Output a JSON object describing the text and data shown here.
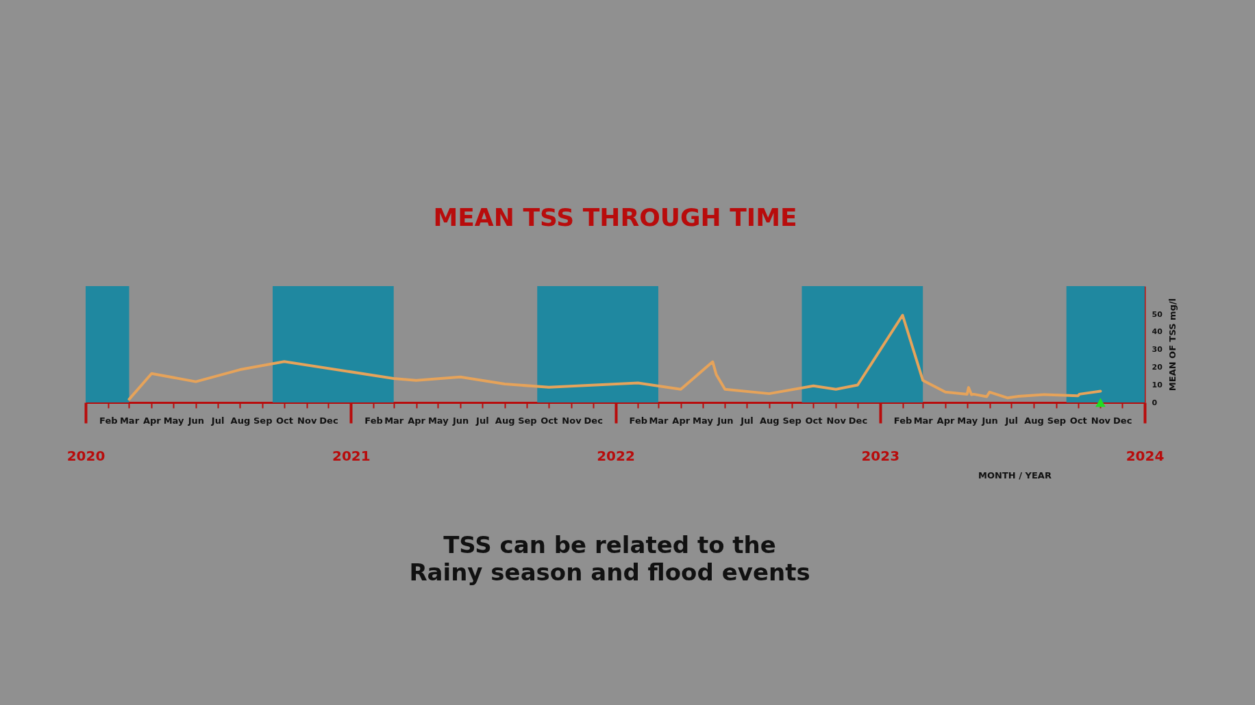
{
  "chart_data": {
    "type": "line",
    "title": "MEAN TSS THROUGH TIME",
    "xlabel": "MONTH / YEAR",
    "ylabel": "MEAN OF TSS mg/l",
    "series": [
      {
        "color": "#e6a35a",
        "x": [
          "2020-03-01",
          "2020-04-01",
          "2020-06-01",
          "2020-08-01",
          "2020-10-01",
          "2021-03-01",
          "2021-04-01",
          "2021-06-01",
          "2021-08-01",
          "2021-10-01",
          "2022-02-01",
          "2022-04-01",
          "2022-05-15",
          "2022-05-20",
          "2022-06-01",
          "2022-08-01",
          "2022-10-01",
          "2022-11-01",
          "2022-12-01",
          "2023-02-01",
          "2023-03-01",
          "2023-04-01",
          "2023-05-01",
          "2023-05-03",
          "2023-05-07",
          "2023-05-10",
          "2023-05-28",
          "2023-06-01",
          "2023-06-26",
          "2023-07-11",
          "2023-08-15",
          "2023-10-01",
          "2023-10-03",
          "2023-11-01"
        ],
        "values": [
          1.8,
          16.4,
          11.8,
          18.6,
          23.2,
          13.6,
          12.5,
          14.5,
          10.5,
          8.6,
          11.1,
          7.5,
          23.1,
          15.8,
          7.5,
          5,
          9.4,
          7.5,
          9.9,
          49.5,
          12.5,
          5.9,
          4.7,
          8.5,
          4.5,
          4.7,
          3.3,
          5.9,
          2.6,
          3.5,
          4.5,
          3.8,
          4.7,
          6.4
        ]
      },
      {
        "type": "scatter",
        "color": "#22dd22",
        "marker": "triangle",
        "x": [
          "2023-11-01"
        ],
        "values": [
          0
        ]
      }
    ],
    "xlim": [
      "2020-01-01",
      "2024-01-01"
    ],
    "ylim": [
      0,
      66
    ],
    "yticks": [
      0,
      10,
      20,
      30,
      40,
      50
    ],
    "x2lim": [
      "2020-01-01",
      "2024-01-01"
    ],
    "x2ticks": [
      "2020",
      "2021",
      "2022",
      "2023",
      "2024"
    ],
    "xticks": [
      {
        "value": "2020-02",
        "label": "Feb"
      },
      {
        "value": "2020-03",
        "label": "Mar"
      },
      {
        "value": "2020-04",
        "label": "Apr"
      },
      {
        "value": "2020-05",
        "label": "May"
      },
      {
        "value": "2020-06",
        "label": "Jun"
      },
      {
        "value": "2020-07",
        "label": "Jul"
      },
      {
        "value": "2020-08",
        "label": "Aug"
      },
      {
        "value": "2020-09",
        "label": "Sep"
      },
      {
        "value": "2020-10",
        "label": "Oct"
      },
      {
        "value": "2020-11",
        "label": "Nov"
      },
      {
        "value": "2020-12",
        "label": "Dec"
      },
      {
        "value": "2021-02",
        "label": "Feb"
      },
      {
        "value": "2021-03",
        "label": "Mar"
      },
      {
        "value": "2021-04",
        "label": "Apr"
      },
      {
        "value": "2021-05",
        "label": "May"
      },
      {
        "value": "2021-06",
        "label": "Jun"
      },
      {
        "value": "2021-07",
        "label": "Jul"
      },
      {
        "value": "2021-08",
        "label": "Aug"
      },
      {
        "value": "2021-09",
        "label": "Sep"
      },
      {
        "value": "2021-10",
        "label": "Oct"
      },
      {
        "value": "2021-11",
        "label": "Nov"
      },
      {
        "value": "2021-12",
        "label": "Dec"
      },
      {
        "value": "2022-02",
        "label": "Feb"
      },
      {
        "value": "2022-03",
        "label": "Mar"
      },
      {
        "value": "2022-04",
        "label": "Apr"
      },
      {
        "value": "2022-05",
        "label": "May"
      },
      {
        "value": "2022-06",
        "label": "Jun"
      },
      {
        "value": "2022-07",
        "label": "Jul"
      },
      {
        "value": "2022-08",
        "label": "Aug"
      },
      {
        "value": "2022-09",
        "label": "Sep"
      },
      {
        "value": "2022-10",
        "label": "Oct"
      },
      {
        "value": "2022-11",
        "label": "Nov"
      },
      {
        "value": "2022-12",
        "label": "Dec"
      },
      {
        "value": "2023-02",
        "label": "Feb"
      },
      {
        "value": "2023-03",
        "label": "Mar"
      },
      {
        "value": "2023-04",
        "label": "Apr"
      },
      {
        "value": "2023-05",
        "label": "May"
      },
      {
        "value": "2023-06",
        "label": "Jun"
      },
      {
        "value": "2023-07",
        "label": "Jul"
      },
      {
        "value": "2023-08",
        "label": "Aug"
      },
      {
        "value": "2023-09",
        "label": "Sep"
      },
      {
        "value": "2023-10",
        "label": "Oct"
      },
      {
        "value": "2023-11",
        "label": "Nov"
      },
      {
        "value": "2023-12",
        "label": "Dec"
      }
    ],
    "bands": [
      {
        "axis": "x",
        "from": "2020-01-01",
        "to": "2020-03-01",
        "color": "#1f88a0"
      },
      {
        "axis": "x",
        "from": "2020-09-15",
        "to": "2021-03-01",
        "color": "#1f88a0"
      },
      {
        "axis": "x",
        "from": "2021-09-15",
        "to": "2022-03-01",
        "color": "#1f88a0"
      },
      {
        "axis": "x",
        "from": "2022-09-15",
        "to": "2023-03-01",
        "color": "#1f88a0"
      },
      {
        "axis": "x",
        "from": "2023-09-15",
        "to": "2024-01-01",
        "color": "#1f88a0"
      }
    ],
    "annotations": [
      "TSS can be related to the",
      "Rainy season and flood events"
    ],
    "grid": false,
    "line_style": "solid"
  }
}
